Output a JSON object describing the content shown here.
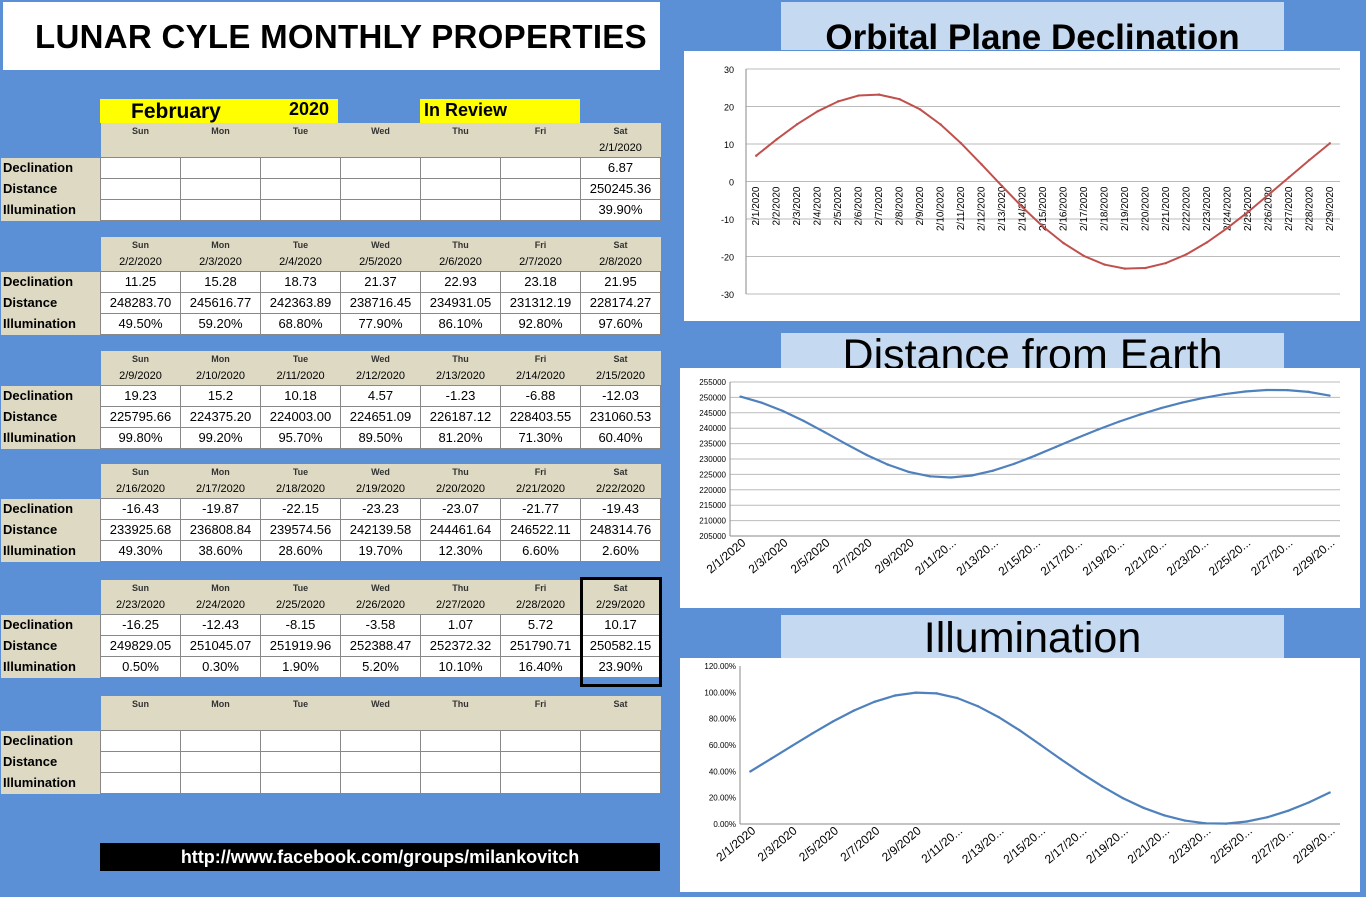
{
  "title": "LUNAR CYLE MONTHLY PROPERTIES",
  "month": "February",
  "year": "2020",
  "review": "In Review",
  "footer": "http://www.facebook.com/groups/milankovitch",
  "days": [
    "Sun",
    "Mon",
    "Tue",
    "Wed",
    "Thu",
    "Fri",
    "Sat"
  ],
  "row_labels": [
    "Declination",
    "Distance",
    "Illumination"
  ],
  "weeks": [
    {
      "dates": [
        "",
        "",
        "",
        "",
        "",
        "",
        "2/1/2020"
      ],
      "declination": [
        "",
        "",
        "",
        "",
        "",
        "",
        "6.87"
      ],
      "distance": [
        "",
        "",
        "",
        "",
        "",
        "",
        "250245.36"
      ],
      "illumination": [
        "",
        "",
        "",
        "",
        "",
        "",
        "39.90%"
      ]
    },
    {
      "dates": [
        "2/2/2020",
        "2/3/2020",
        "2/4/2020",
        "2/5/2020",
        "2/6/2020",
        "2/7/2020",
        "2/8/2020"
      ],
      "declination": [
        "11.25",
        "15.28",
        "18.73",
        "21.37",
        "22.93",
        "23.18",
        "21.95"
      ],
      "distance": [
        "248283.70",
        "245616.77",
        "242363.89",
        "238716.45",
        "234931.05",
        "231312.19",
        "228174.27"
      ],
      "illumination": [
        "49.50%",
        "59.20%",
        "68.80%",
        "77.90%",
        "86.10%",
        "92.80%",
        "97.60%"
      ]
    },
    {
      "dates": [
        "2/9/2020",
        "2/10/2020",
        "2/11/2020",
        "2/12/2020",
        "2/13/2020",
        "2/14/2020",
        "2/15/2020"
      ],
      "declination": [
        "19.23",
        "15.2",
        "10.18",
        "4.57",
        "-1.23",
        "-6.88",
        "-12.03"
      ],
      "distance": [
        "225795.66",
        "224375.20",
        "224003.00",
        "224651.09",
        "226187.12",
        "228403.55",
        "231060.53"
      ],
      "illumination": [
        "99.80%",
        "99.20%",
        "95.70%",
        "89.50%",
        "81.20%",
        "71.30%",
        "60.40%"
      ]
    },
    {
      "dates": [
        "2/16/2020",
        "2/17/2020",
        "2/18/2020",
        "2/19/2020",
        "2/20/2020",
        "2/21/2020",
        "2/22/2020"
      ],
      "declination": [
        "-16.43",
        "-19.87",
        "-22.15",
        "-23.23",
        "-23.07",
        "-21.77",
        "-19.43"
      ],
      "distance": [
        "233925.68",
        "236808.84",
        "239574.56",
        "242139.58",
        "244461.64",
        "246522.11",
        "248314.76"
      ],
      "illumination": [
        "49.30%",
        "38.60%",
        "28.60%",
        "19.70%",
        "12.30%",
        "6.60%",
        "2.60%"
      ]
    },
    {
      "dates": [
        "2/23/2020",
        "2/24/2020",
        "2/25/2020",
        "2/26/2020",
        "2/27/2020",
        "2/28/2020",
        "2/29/2020"
      ],
      "declination": [
        "-16.25",
        "-12.43",
        "-8.15",
        "-3.58",
        "1.07",
        "5.72",
        "10.17"
      ],
      "distance": [
        "249829.05",
        "251045.07",
        "251919.96",
        "252388.47",
        "252372.32",
        "251790.71",
        "250582.15"
      ],
      "illumination": [
        "0.50%",
        "0.30%",
        "1.90%",
        "5.20%",
        "10.10%",
        "16.40%",
        "23.90%"
      ]
    },
    {
      "dates": [
        "",
        "",
        "",
        "",
        "",
        "",
        ""
      ],
      "declination": [
        "",
        "",
        "",
        "",
        "",
        "",
        ""
      ],
      "distance": [
        "",
        "",
        "",
        "",
        "",
        "",
        ""
      ],
      "illumination": [
        "",
        "",
        "",
        "",
        "",
        "",
        ""
      ]
    }
  ],
  "chart_data": [
    {
      "type": "line",
      "title": "Orbital Plane Declination",
      "x": [
        "2/1/2020",
        "2/2/2020",
        "2/3/2020",
        "2/4/2020",
        "2/5/2020",
        "2/6/2020",
        "2/7/2020",
        "2/8/2020",
        "2/9/2020",
        "2/10/2020",
        "2/11/2020",
        "2/12/2020",
        "2/13/2020",
        "2/14/2020",
        "2/15/2020",
        "2/16/2020",
        "2/17/2020",
        "2/18/2020",
        "2/19/2020",
        "2/20/2020",
        "2/21/2020",
        "2/22/2020",
        "2/23/2020",
        "2/24/2020",
        "2/25/2020",
        "2/26/2020",
        "2/27/2020",
        "2/28/2020",
        "2/29/2020"
      ],
      "values": [
        6.87,
        11.25,
        15.28,
        18.73,
        21.37,
        22.93,
        23.18,
        21.95,
        19.23,
        15.2,
        10.18,
        4.57,
        -1.23,
        -6.88,
        -12.03,
        -16.43,
        -19.87,
        -22.15,
        -23.23,
        -23.07,
        -21.77,
        -19.43,
        -16.25,
        -12.43,
        -8.15,
        -3.58,
        1.07,
        5.72,
        10.17
      ],
      "ylim": [
        -30,
        30
      ],
      "yticks": [
        30,
        20,
        10,
        0,
        -10,
        -20,
        -30
      ],
      "color": "#c0504d",
      "grid": true
    },
    {
      "type": "line",
      "title": "Distance from Earth",
      "x": [
        "2/1/2020",
        "2/2/2020",
        "2/3/2020",
        "2/4/2020",
        "2/5/2020",
        "2/6/2020",
        "2/7/2020",
        "2/8/2020",
        "2/9/2020",
        "2/10/2020",
        "2/11/2020",
        "2/12/2020",
        "2/13/2020",
        "2/14/2020",
        "2/15/2020",
        "2/16/2020",
        "2/17/2020",
        "2/18/2020",
        "2/19/2020",
        "2/20/2020",
        "2/21/2020",
        "2/22/2020",
        "2/23/2020",
        "2/24/2020",
        "2/25/2020",
        "2/26/2020",
        "2/27/2020",
        "2/28/2020",
        "2/29/2020"
      ],
      "xtick_labels": [
        "2/1/2020",
        "2/3/2020",
        "2/5/2020",
        "2/7/2020",
        "2/9/2020",
        "2/11/20...",
        "2/13/20...",
        "2/15/20...",
        "2/17/20...",
        "2/19/20...",
        "2/21/20...",
        "2/23/20...",
        "2/25/20...",
        "2/27/20...",
        "2/29/20..."
      ],
      "values": [
        250245.36,
        248283.7,
        245616.77,
        242363.89,
        238716.45,
        234931.05,
        231312.19,
        228174.27,
        225795.66,
        224375.2,
        224003.0,
        224651.09,
        226187.12,
        228403.55,
        231060.53,
        233925.68,
        236808.84,
        239574.56,
        242139.58,
        244461.64,
        246522.11,
        248314.76,
        249829.05,
        251045.07,
        251919.96,
        252388.47,
        252372.32,
        251790.71,
        250582.15
      ],
      "ylim": [
        205000,
        255000
      ],
      "yticks": [
        255000,
        250000,
        245000,
        240000,
        235000,
        230000,
        225000,
        220000,
        215000,
        210000,
        205000
      ],
      "color": "#4f81bd",
      "grid": true
    },
    {
      "type": "line",
      "title": "Illumination",
      "x": [
        "2/1/2020",
        "2/2/2020",
        "2/3/2020",
        "2/4/2020",
        "2/5/2020",
        "2/6/2020",
        "2/7/2020",
        "2/8/2020",
        "2/9/2020",
        "2/10/2020",
        "2/11/2020",
        "2/12/2020",
        "2/13/2020",
        "2/14/2020",
        "2/15/2020",
        "2/16/2020",
        "2/17/2020",
        "2/18/2020",
        "2/19/2020",
        "2/20/2020",
        "2/21/2020",
        "2/22/2020",
        "2/23/2020",
        "2/24/2020",
        "2/25/2020",
        "2/26/2020",
        "2/27/2020",
        "2/28/2020",
        "2/29/2020"
      ],
      "xtick_labels": [
        "2/1/2020",
        "2/3/2020",
        "2/5/2020",
        "2/7/2020",
        "2/9/2020",
        "2/11/20...",
        "2/13/20...",
        "2/15/20...",
        "2/17/20...",
        "2/19/20...",
        "2/21/20...",
        "2/23/20...",
        "2/25/20...",
        "2/27/20...",
        "2/29/20..."
      ],
      "values": [
        39.9,
        49.5,
        59.2,
        68.8,
        77.9,
        86.1,
        92.8,
        97.6,
        99.8,
        99.2,
        95.7,
        89.5,
        81.2,
        71.3,
        60.4,
        49.3,
        38.6,
        28.6,
        19.7,
        12.3,
        6.6,
        2.6,
        0.5,
        0.3,
        1.9,
        5.2,
        10.1,
        16.4,
        23.9
      ],
      "ylim": [
        0,
        120
      ],
      "yticks": [
        "120.00%",
        "100.00%",
        "80.00%",
        "60.00%",
        "40.00%",
        "20.00%",
        "0.00%"
      ],
      "color": "#4f81bd",
      "grid": false
    }
  ]
}
